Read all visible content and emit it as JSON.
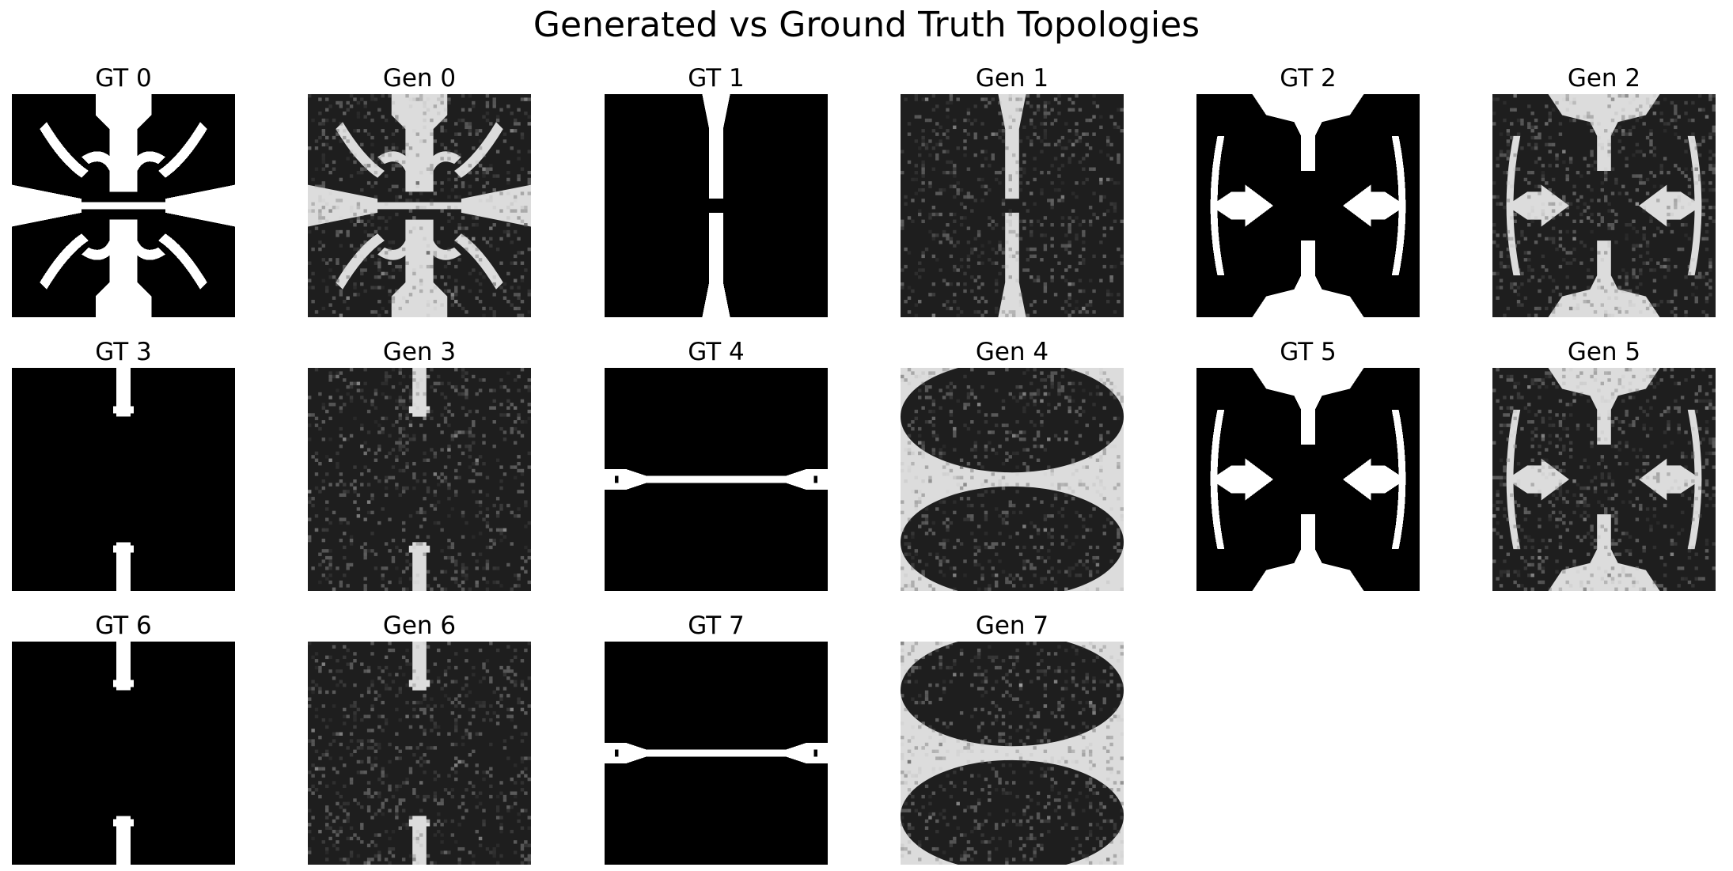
{
  "title": "Generated vs Ground Truth Topologies",
  "panels": [
    {
      "label": "GT 0",
      "kind": "gt",
      "shape": "cross"
    },
    {
      "label": "Gen 0",
      "kind": "gen",
      "shape": "cross"
    },
    {
      "label": "GT 1",
      "kind": "gt",
      "shape": "vbar"
    },
    {
      "label": "Gen 1",
      "kind": "gen",
      "shape": "vbar"
    },
    {
      "label": "GT 2",
      "kind": "gt",
      "shape": "arrows"
    },
    {
      "label": "Gen 2",
      "kind": "gen",
      "shape": "arrows"
    },
    {
      "label": "GT 3",
      "kind": "gt",
      "shape": "thin"
    },
    {
      "label": "Gen 3",
      "kind": "gen",
      "shape": "thin"
    },
    {
      "label": "GT 4",
      "kind": "gt",
      "shape": "hbar"
    },
    {
      "label": "Gen 4",
      "kind": "gen",
      "shape": "ovals"
    },
    {
      "label": "GT 5",
      "kind": "gt",
      "shape": "arrows"
    },
    {
      "label": "Gen 5",
      "kind": "gen",
      "shape": "arrows"
    },
    {
      "label": "GT 6",
      "kind": "gt",
      "shape": "thin"
    },
    {
      "label": "Gen 6",
      "kind": "gen",
      "shape": "thin"
    },
    {
      "label": "GT 7",
      "kind": "gt",
      "shape": "hbar"
    },
    {
      "label": "Gen 7",
      "kind": "gen",
      "shape": "ovals"
    }
  ],
  "colors": {
    "solid": "#ffffff",
    "void": "#000000",
    "gen_solid": "#dcdcdc",
    "gen_void": "#1e1e1e"
  }
}
